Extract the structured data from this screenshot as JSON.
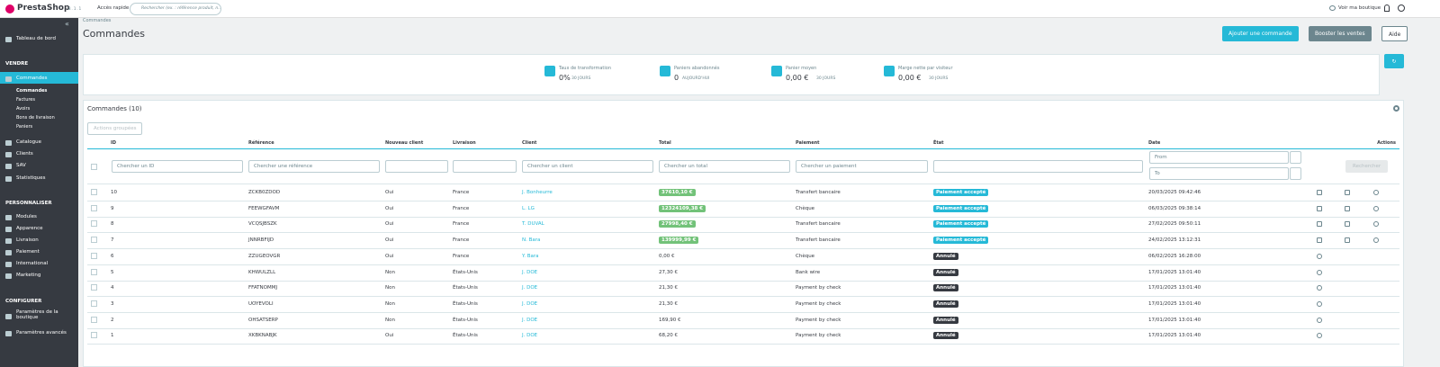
{
  "header": {
    "logo": "PrestaShop",
    "version": "8.1.1",
    "quick_access": "Accès rapide",
    "search_placeholder": "Rechercher (ex. : référence produit, n...",
    "view_shop": "Voir ma boutique"
  },
  "sidebar": {
    "dashboard": "Tableau de bord",
    "sections": [
      {
        "title": "VENDRE",
        "items": [
          {
            "label": "Commandes",
            "sub": [
              "Commandes",
              "Factures",
              "Avoirs",
              "Bons de livraison",
              "Paniers"
            ]
          },
          {
            "label": "Catalogue"
          },
          {
            "label": "Clients"
          },
          {
            "label": "SAV"
          },
          {
            "label": "Statistiques"
          }
        ]
      },
      {
        "title": "PERSONNALISER",
        "items": [
          {
            "label": "Modules"
          },
          {
            "label": "Apparence"
          },
          {
            "label": "Livraison"
          },
          {
            "label": "Paiement"
          },
          {
            "label": "International"
          },
          {
            "label": "Marketing"
          }
        ]
      },
      {
        "title": "CONFIGURER",
        "items": [
          {
            "label": "Paramètres de la boutique"
          },
          {
            "label": "Paramètres avancés"
          }
        ]
      }
    ]
  },
  "page": {
    "breadcrumb": "Commandes",
    "title": "Commandes",
    "buttons": [
      "Ajouter une commande",
      "Booster les ventes",
      "Aide"
    ]
  },
  "kpis": [
    {
      "label": "Taux de transformation",
      "value": "0%",
      "period": "30 JOURS"
    },
    {
      "label": "Paniers abandonnés",
      "value": "0",
      "period": "AUJOURD'HUI"
    },
    {
      "label": "Panier moyen",
      "value": "0,00 €",
      "period": "30 JOURS"
    },
    {
      "label": "Marge nette par visiteur",
      "value": "0,00 €",
      "period": "30 JOURS"
    }
  ],
  "grid": {
    "title": "Commandes (10)",
    "bulk_actions": "Actions groupées",
    "columns": [
      "ID",
      "Référence",
      "Nouveau client",
      "Livraison",
      "Client",
      "Total",
      "Paiement",
      "État",
      "Date",
      "Actions"
    ],
    "filters": {
      "id": "Chercher un ID",
      "reference": "Chercher une référence",
      "client": "Chercher un client",
      "total": "Chercher un total",
      "payment": "Chercher un paiement",
      "date_from": "From",
      "date_to": "To",
      "search": "Rechercher"
    },
    "rows": [
      {
        "id": "10",
        "reference": "ZCKB0ZDOD",
        "new_client": "Oui",
        "country": "France",
        "client": "J. Bonheurre",
        "total": "37610,10 €",
        "total_color": "#72c279",
        "payment": "Transfert bancaire",
        "state": "Paiement accepté",
        "state_color": "#25b9d7",
        "date": "20/03/2025 09:42:46"
      },
      {
        "id": "9",
        "reference": "FEEWGFAVM",
        "new_client": "Oui",
        "country": "France",
        "client": "L. LG",
        "total": "12324109,38 €",
        "total_color": "#72c279",
        "payment": "Chèque",
        "state": "Paiement accepté",
        "state_color": "#25b9d7",
        "date": "06/03/2025 09:38:14"
      },
      {
        "id": "8",
        "reference": "VCQSJBSZK",
        "new_client": "Oui",
        "country": "France",
        "client": "T. DUVAL",
        "total": "27998,40 €",
        "total_color": "#72c279",
        "payment": "Transfert bancaire",
        "state": "Paiement accepté",
        "state_color": "#25b9d7",
        "date": "27/02/2025 09:50:11"
      },
      {
        "id": "7",
        "reference": "JNNRBFIJD",
        "new_client": "Oui",
        "country": "France",
        "client": "N. Bara",
        "total": "139999,99 €",
        "total_color": "#72c279",
        "payment": "Transfert bancaire",
        "state": "Paiement accepté",
        "state_color": "#25b9d7",
        "date": "24/02/2025 13:12:31"
      },
      {
        "id": "6",
        "reference": "ZZUGEOVGR",
        "new_client": "Oui",
        "country": "France",
        "client": "Y. Bara",
        "total": "0,00 €",
        "payment": "Chèque",
        "state": "Annulé",
        "state_color": "#363a41",
        "date": "06/02/2025 16:28:00"
      },
      {
        "id": "5",
        "reference": "KHWULZLL",
        "new_client": "Non",
        "country": "États-Unis",
        "client": "J. DOE",
        "total": "27,30 €",
        "payment": "Bank wire",
        "state": "Annulé",
        "state_color": "#363a41",
        "date": "17/01/2025 13:01:40"
      },
      {
        "id": "4",
        "reference": "FFATNOMMJ",
        "new_client": "Non",
        "country": "États-Unis",
        "client": "J. DOE",
        "total": "21,30 €",
        "payment": "Payment by check",
        "state": "Annulé",
        "state_color": "#363a41",
        "date": "17/01/2025 13:01:40"
      },
      {
        "id": "3",
        "reference": "UOYEVOLI",
        "new_client": "Non",
        "country": "États-Unis",
        "client": "J. DOE",
        "total": "21,30 €",
        "payment": "Payment by check",
        "state": "Annulé",
        "state_color": "#363a41",
        "date": "17/01/2025 13:01:40"
      },
      {
        "id": "2",
        "reference": "OHSATSERP",
        "new_client": "Non",
        "country": "États-Unis",
        "client": "J. DOE",
        "total": "169,90 €",
        "payment": "Payment by check",
        "state": "Annulé",
        "state_color": "#363a41",
        "date": "17/01/2025 13:01:40"
      },
      {
        "id": "1",
        "reference": "XKBKNABJK",
        "new_client": "Oui",
        "country": "États-Unis",
        "client": "J. DOE",
        "total": "68,20 €",
        "payment": "Payment by check",
        "state": "Annulé",
        "state_color": "#363a41",
        "date": "17/01/2025 13:01:40"
      }
    ]
  }
}
